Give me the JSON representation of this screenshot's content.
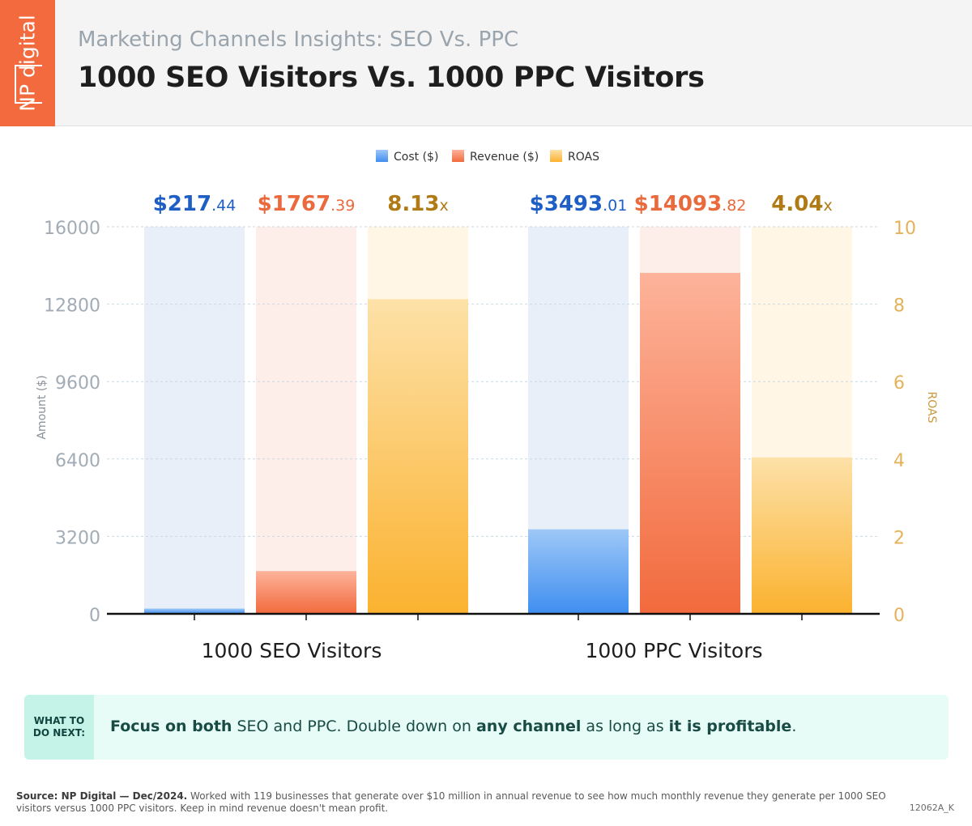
{
  "header": {
    "logo": "NP digital",
    "subtitle": "Marketing Channels Insights: SEO Vs. PPC",
    "title": "1000 SEO Visitors Vs. 1000 PPC Visitors"
  },
  "colors": {
    "cost": "#3f8ef0",
    "revenue": "#f26a3d",
    "roas": "#fbb22f",
    "cost_label": "#1f5fc5",
    "revenue_label": "#ea6a3d",
    "roas_label": "#b07a14"
  },
  "chart_data": {
    "type": "bar",
    "legend_position": "top-center",
    "legend": [
      "Cost ($)",
      "Revenue ($)",
      "ROAS"
    ],
    "categories": [
      "1000 SEO Visitors",
      "1000 PPC Visitors"
    ],
    "series": [
      {
        "name": "Cost ($)",
        "axis": "left",
        "values": [
          217.44,
          3493.01
        ],
        "labels": [
          {
            "main": "$217",
            "sub": ".44"
          },
          {
            "main": "$3493",
            "sub": ".01"
          }
        ]
      },
      {
        "name": "Revenue ($)",
        "axis": "left",
        "values": [
          1767.39,
          14093.82
        ],
        "labels": [
          {
            "main": "$1767",
            "sub": ".39"
          },
          {
            "main": "$14093",
            "sub": ".82"
          }
        ]
      },
      {
        "name": "ROAS",
        "axis": "right",
        "values": [
          8.13,
          4.04
        ],
        "labels": [
          {
            "main": "8.13",
            "sub": "x"
          },
          {
            "main": "4.04",
            "sub": "x"
          }
        ]
      }
    ],
    "ylabel": "Amount ($)",
    "ylabel_right": "ROAS",
    "ylim": [
      0,
      16000
    ],
    "ylim_right": [
      0,
      10
    ],
    "yticks": [
      0,
      3200,
      6400,
      9600,
      12800,
      16000
    ],
    "yticks_right": [
      0,
      2,
      4,
      6,
      8,
      10
    ],
    "grid": true
  },
  "next_steps": {
    "label": "WHAT TO DO NEXT:",
    "part1_bold": "Focus on both",
    "part2": " SEO and PPC. Double down on ",
    "part3_bold": "any channel",
    "part4": " as long as ",
    "part5_bold": "it is profitable",
    "part6": "."
  },
  "footer": {
    "source_bold": "Source:  NP Digital — Dec/2024.",
    "source_text": " Worked with 119 businesses that generate over $10 million in annual revenue to see how much monthly revenue they generate per 1000 SEO visitors versus 1000 PPC visitors. Keep in mind revenue doesn't mean profit.",
    "code": "12062A_K"
  }
}
